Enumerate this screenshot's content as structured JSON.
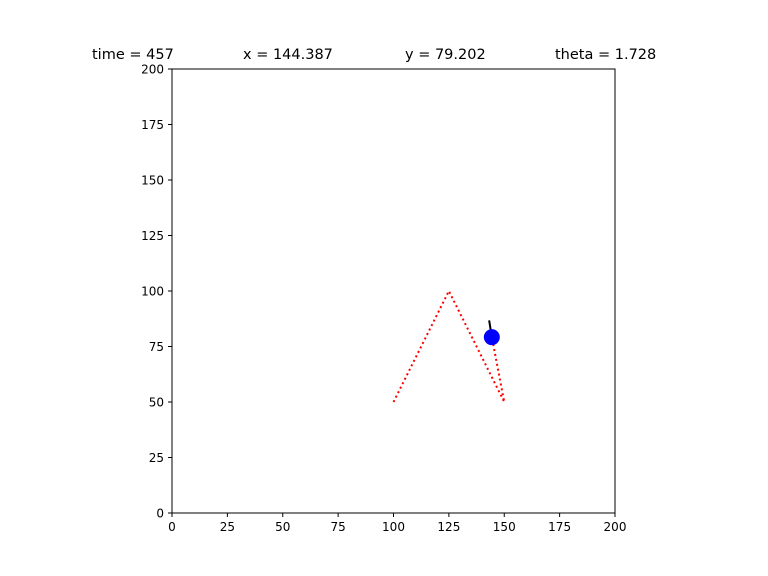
{
  "title": {
    "time": "time = 457",
    "x": "x = 144.387",
    "y": "y = 79.202",
    "theta": "theta = 1.728"
  },
  "chart_data": {
    "type": "line",
    "title": "time = 457      x = 144.387      y = 79.202      theta = 1.728",
    "xlabel": "",
    "ylabel": "",
    "xlim": [
      0,
      200
    ],
    "ylim": [
      0,
      200
    ],
    "grid": false,
    "x_ticks": [
      0,
      25,
      50,
      75,
      100,
      125,
      150,
      175,
      200
    ],
    "y_ticks": [
      0,
      25,
      50,
      75,
      100,
      125,
      150,
      175,
      200
    ],
    "series": [
      {
        "style": "dotted",
        "color": "#ff0000",
        "points": [
          [
            100,
            50
          ],
          [
            125,
            100
          ],
          [
            150,
            50
          ],
          [
            144.387,
            79.202
          ]
        ]
      }
    ],
    "robot": {
      "x": 144.387,
      "y": 79.202,
      "theta": 1.728,
      "color": "#0000ff",
      "heading_color": "#000000"
    }
  }
}
